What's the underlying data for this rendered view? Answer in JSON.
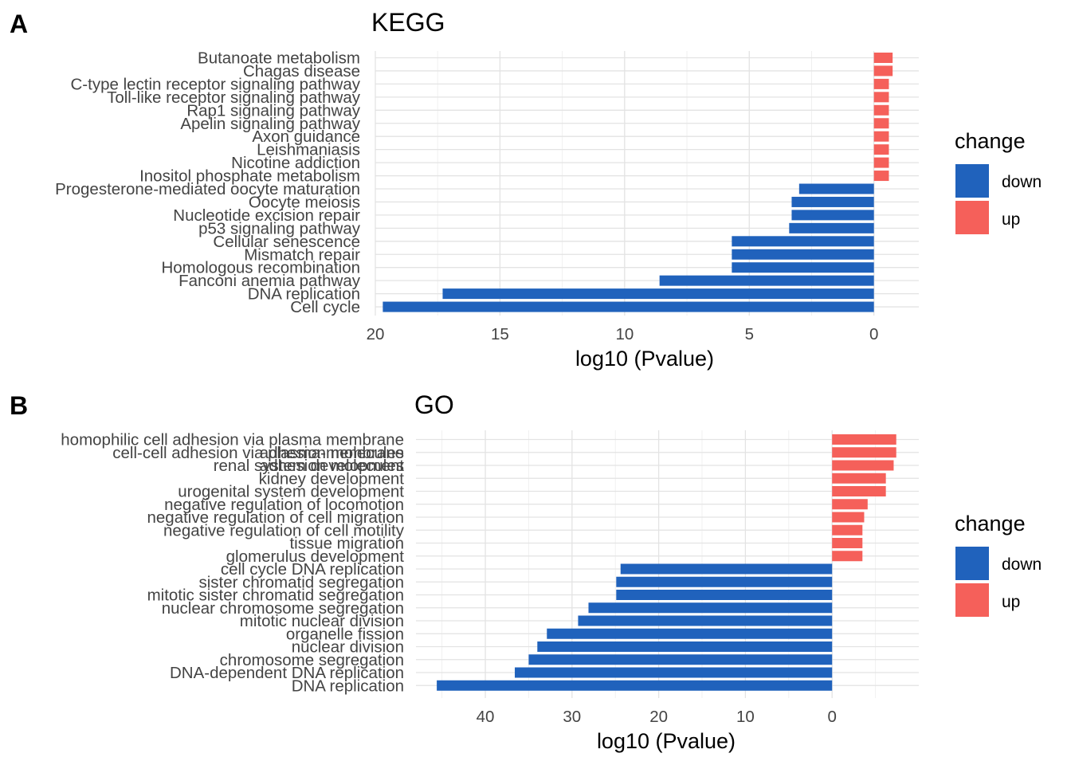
{
  "chart_data": [
    {
      "panel": "A",
      "title": "KEGG",
      "type": "bar",
      "orientation": "horizontal",
      "xlabel": "log10 (Pvalue)",
      "x_axis_reversed": true,
      "xlim": [
        20.0,
        -1.8
      ],
      "x_ticks": [
        20,
        15,
        10,
        5,
        0
      ],
      "grid": true,
      "legend": {
        "title": "change",
        "position": "right",
        "entries": [
          {
            "name": "down",
            "color": "#2062BC"
          },
          {
            "name": "up",
            "color": "#F5605A"
          }
        ]
      },
      "categories": [
        "Butanoate metabolism",
        "Chagas disease",
        "C-type lectin receptor signaling pathway",
        "Toll-like receptor signaling pathway",
        "Rap1 signaling pathway",
        "Apelin signaling pathway",
        "Axon guidance",
        "Leishmaniasis",
        "Nicotine addiction",
        "Inositol phosphate metabolism",
        "Progesterone-mediated oocyte maturation",
        "Oocyte meiosis",
        "Nucleotide excision repair",
        "p53 signaling pathway",
        "Cellular senescence",
        "Mismatch repair",
        "Homologous recombination",
        "Fanconi anemia pathway",
        "DNA replication",
        "Cell cycle"
      ],
      "values": [
        -0.75,
        -0.75,
        -0.6,
        -0.6,
        -0.6,
        -0.6,
        -0.6,
        -0.6,
        -0.6,
        -0.6,
        3.0,
        3.3,
        3.3,
        3.4,
        5.7,
        5.7,
        5.7,
        8.6,
        17.3,
        19.7
      ],
      "change": [
        "up",
        "up",
        "up",
        "up",
        "up",
        "up",
        "up",
        "up",
        "up",
        "up",
        "down",
        "down",
        "down",
        "down",
        "down",
        "down",
        "down",
        "down",
        "down",
        "down"
      ]
    },
    {
      "panel": "B",
      "title": "GO",
      "type": "bar",
      "orientation": "horizontal",
      "xlabel": "log10 (Pvalue)",
      "x_axis_reversed": true,
      "xlim": [
        48.0,
        -10.0
      ],
      "x_ticks": [
        40,
        30,
        20,
        10,
        0
      ],
      "grid": true,
      "legend": {
        "title": "change",
        "position": "right",
        "entries": [
          {
            "name": "down",
            "color": "#2062BC"
          },
          {
            "name": "up",
            "color": "#F5605A"
          }
        ]
      },
      "categories": [
        "homophilic cell adhesion via plasma membrane adhesion molecules",
        "cell-cell adhesion via plasma-membrane adhesion molecules",
        "renal system development",
        "kidney development",
        "urogenital system development",
        "negative regulation of locomotion",
        "negative regulation of cell migration",
        "negative regulation of cell motility",
        "tissue migration",
        "glomerulus development",
        "cell cycle DNA replication",
        "sister chromatid segregation",
        "mitotic sister chromatid segregation",
        "nuclear chromosome segregation",
        "mitotic nuclear division",
        "organelle fission",
        "nuclear division",
        "chromosome segregation",
        "DNA-dependent DNA replication",
        "DNA replication"
      ],
      "category_label_lines": [
        [
          "homophilic cell adhesion via plasma membrane",
          "adhesion molecules"
        ],
        [
          "cell-cell adhesion via plasma-membrane",
          "adhesion molecules"
        ],
        [
          "renal system development"
        ],
        [
          "kidney development"
        ],
        [
          "urogenital system development"
        ],
        [
          "negative regulation of locomotion"
        ],
        [
          "negative regulation of cell migration"
        ],
        [
          "negative regulation of cell motility"
        ],
        [
          "tissue migration"
        ],
        [
          "glomerulus development"
        ],
        [
          "cell cycle DNA replication"
        ],
        [
          "sister chromatid segregation"
        ],
        [
          "mitotic sister chromatid segregation"
        ],
        [
          "nuclear chromosome segregation"
        ],
        [
          "mitotic nuclear division"
        ],
        [
          "organelle fission"
        ],
        [
          "nuclear division"
        ],
        [
          "chromosome segregation"
        ],
        [
          "DNA-dependent DNA replication"
        ],
        [
          "DNA replication"
        ]
      ],
      "values": [
        -7.4,
        -7.4,
        -7.1,
        -6.2,
        -6.2,
        -4.1,
        -3.7,
        -3.5,
        -3.5,
        -3.5,
        24.4,
        24.9,
        24.9,
        28.1,
        29.3,
        32.9,
        34.0,
        35.0,
        36.6,
        45.6
      ],
      "change": [
        "up",
        "up",
        "up",
        "up",
        "up",
        "up",
        "up",
        "up",
        "up",
        "up",
        "down",
        "down",
        "down",
        "down",
        "down",
        "down",
        "down",
        "down",
        "down",
        "down"
      ]
    }
  ]
}
